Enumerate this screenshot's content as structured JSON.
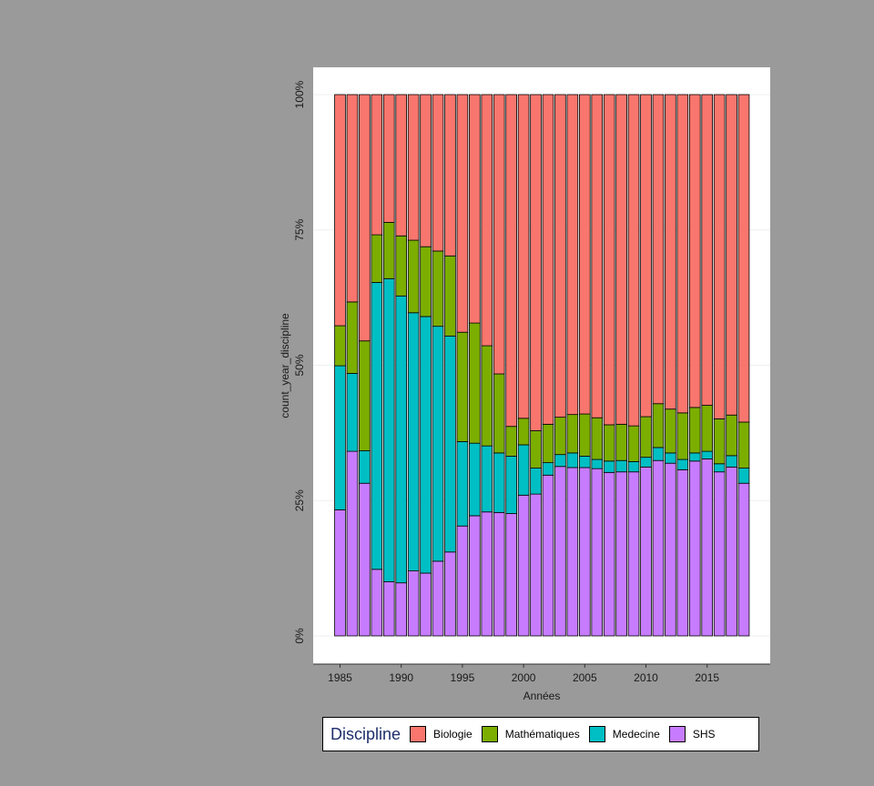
{
  "chart_data": {
    "type": "bar",
    "stacked": "percent",
    "xlabel": "Années",
    "ylabel": "count_year_discipline",
    "ylim": [
      0,
      1
    ],
    "y_ticks": [
      0,
      0.25,
      0.5,
      0.75,
      1
    ],
    "y_tick_labels": [
      "0%",
      "25%",
      "50%",
      "75%",
      "100%"
    ],
    "x_ticks": [
      1985,
      1990,
      1995,
      2000,
      2005,
      2010,
      2015
    ],
    "x_tick_labels": [
      "1985",
      "1990",
      "1995",
      "2000",
      "2005",
      "2010",
      "2015"
    ],
    "grid": true,
    "legend": {
      "title": "Discipline",
      "placement": "bottom",
      "entries": [
        "Biologie",
        "Mathématiques",
        "Medecine",
        "SHS"
      ]
    },
    "x": [
      1985,
      1986,
      1987,
      1988,
      1989,
      1990,
      1991,
      1992,
      1993,
      1994,
      1995,
      1996,
      1997,
      1998,
      1999,
      2000,
      2001,
      2002,
      2003,
      2004,
      2005,
      2006,
      2007,
      2008,
      2009,
      2010,
      2011,
      2012,
      2013,
      2014,
      2015,
      2016,
      2017,
      2018
    ],
    "series": [
      {
        "name": "SHS",
        "color": "#c77cff",
        "values": [
          0.233,
          0.341,
          0.282,
          0.123,
          0.1,
          0.098,
          0.12,
          0.116,
          0.138,
          0.155,
          0.203,
          0.222,
          0.229,
          0.228,
          0.226,
          0.26,
          0.262,
          0.297,
          0.313,
          0.311,
          0.311,
          0.309,
          0.302,
          0.303,
          0.303,
          0.312,
          0.324,
          0.319,
          0.307,
          0.323,
          0.327,
          0.303,
          0.312,
          0.282
        ]
      },
      {
        "name": "Medecine",
        "color": "#00bfc4",
        "values": [
          0.266,
          0.144,
          0.06,
          0.53,
          0.56,
          0.53,
          0.477,
          0.474,
          0.434,
          0.399,
          0.156,
          0.134,
          0.122,
          0.11,
          0.106,
          0.093,
          0.048,
          0.023,
          0.022,
          0.027,
          0.021,
          0.017,
          0.021,
          0.021,
          0.019,
          0.018,
          0.024,
          0.019,
          0.019,
          0.015,
          0.014,
          0.015,
          0.021,
          0.028
        ]
      },
      {
        "name": "Mathématiques",
        "color": "#7cae00",
        "values": [
          0.074,
          0.132,
          0.203,
          0.088,
          0.104,
          0.111,
          0.134,
          0.129,
          0.139,
          0.148,
          0.202,
          0.222,
          0.185,
          0.146,
          0.055,
          0.049,
          0.069,
          0.071,
          0.069,
          0.071,
          0.078,
          0.077,
          0.067,
          0.067,
          0.066,
          0.075,
          0.081,
          0.081,
          0.086,
          0.084,
          0.085,
          0.083,
          0.075,
          0.085
        ]
      },
      {
        "name": "Biologie",
        "color": "#f8766d",
        "values": [
          0.427,
          0.383,
          0.455,
          0.259,
          0.236,
          0.261,
          0.269,
          0.281,
          0.289,
          0.298,
          0.439,
          0.422,
          0.464,
          0.516,
          0.613,
          0.598,
          0.621,
          0.609,
          0.596,
          0.591,
          0.59,
          0.597,
          0.61,
          0.609,
          0.612,
          0.595,
          0.571,
          0.581,
          0.588,
          0.578,
          0.574,
          0.599,
          0.592,
          0.605
        ]
      }
    ]
  }
}
